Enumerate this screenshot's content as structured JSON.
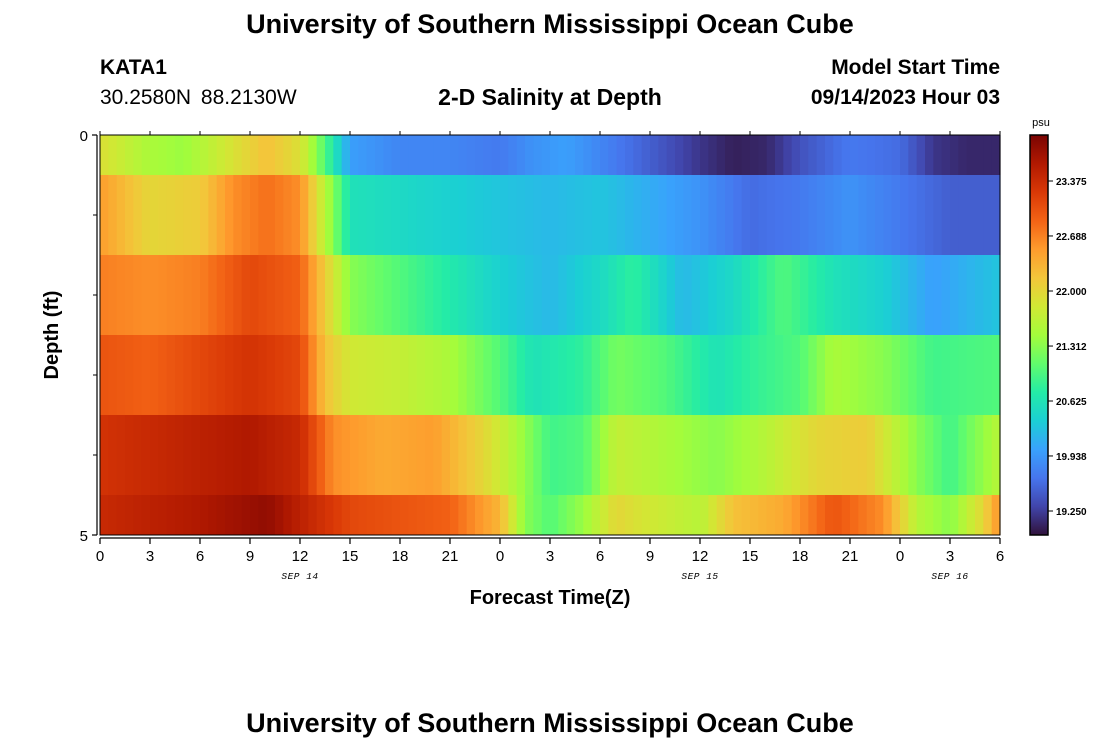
{
  "page": {
    "title": "University of Southern Mississippi Ocean Cube",
    "title_repeat": "University of Southern Mississippi Ocean Cube"
  },
  "header": {
    "station_id": "KATA1",
    "coordinates": "30.2580N  88.2130W",
    "plot_title": "2-D Salinity at Depth",
    "model_start_label": "Model Start Time",
    "model_start_value": "09/14/2023 Hour 03"
  },
  "colors": {
    "colormap": [
      "#30123b",
      "#4145ab",
      "#4675ed",
      "#39a2fc",
      "#1bcfd4",
      "#24eca6",
      "#61fc6c",
      "#a4fc3b",
      "#d1e834",
      "#f3c63a",
      "#fe9b2d",
      "#f36315",
      "#d93806",
      "#b11901",
      "#7a0403"
    ]
  },
  "chart_data": {
    "type": "heatmap",
    "title": "2-D Salinity at Depth",
    "xlabel": "Forecast Time(Z)",
    "ylabel": "Depth (ft)",
    "colorbar_unit": "psu",
    "colorbar_ticks": [
      23.375,
      22.688,
      22.0,
      21.312,
      20.625,
      19.938,
      19.25
    ],
    "colorbar_tick_labels": [
      "23.375",
      "22.688",
      "22.000",
      "21.312",
      "20.625",
      "19.938",
      "19.250"
    ],
    "colorbar_range": [
      18.95,
      23.95
    ],
    "x_range_hours": [
      0,
      54
    ],
    "x_ticks_hours": [
      0,
      3,
      6,
      9,
      12,
      15,
      18,
      21,
      24,
      27,
      30,
      33,
      36,
      39,
      42,
      45,
      48,
      51,
      54
    ],
    "x_tick_labels": [
      "0",
      "3",
      "6",
      "9",
      "12",
      "15",
      "18",
      "21",
      "0",
      "3",
      "6",
      "9",
      "12",
      "15",
      "18",
      "21",
      "0",
      "3",
      "6"
    ],
    "date_labels": [
      {
        "hour": 12,
        "label": "SEP 14"
      },
      {
        "hour": 36,
        "label": "SEP 15"
      },
      {
        "hour": 51,
        "label": "SEP 16"
      }
    ],
    "y_range": [
      0,
      5
    ],
    "y_tick_labels": [
      "0",
      "5"
    ],
    "y_minor_ticks": [
      1,
      2,
      3,
      4
    ],
    "depth_bands": [
      {
        "depth": "0-0.5",
        "y0": 0.0,
        "y1": 0.5
      },
      {
        "depth": "0.5-1.5",
        "y0": 0.5,
        "y1": 1.5
      },
      {
        "depth": "1.5-2.5",
        "y0": 1.5,
        "y1": 2.5
      },
      {
        "depth": "2.5-3.5",
        "y0": 2.5,
        "y1": 3.5
      },
      {
        "depth": "3.5-4.5",
        "y0": 3.5,
        "y1": 4.5
      },
      {
        "depth": "4.5-5",
        "y0": 4.5,
        "y1": 5.0
      }
    ],
    "salinity_keyframes": [
      {
        "depth": "0-0.5",
        "points": [
          [
            0,
            21.9
          ],
          [
            3,
            21.5
          ],
          [
            5,
            21.4
          ],
          [
            7.5,
            21.8
          ],
          [
            10,
            22.2
          ],
          [
            12,
            21.9
          ],
          [
            13.5,
            21.0
          ],
          [
            15,
            20.0
          ],
          [
            18,
            19.8
          ],
          [
            21,
            19.8
          ],
          [
            24,
            19.7
          ],
          [
            26,
            19.9
          ],
          [
            28,
            20.0
          ],
          [
            31,
            19.7
          ],
          [
            33,
            19.5
          ],
          [
            36,
            19.2
          ],
          [
            38,
            19.05
          ],
          [
            40,
            19.1
          ],
          [
            42,
            19.4
          ],
          [
            45,
            19.7
          ],
          [
            48,
            19.6
          ],
          [
            50,
            19.2
          ],
          [
            52,
            19.1
          ],
          [
            54,
            19.1
          ]
        ]
      },
      {
        "depth": "0.5-1.5",
        "points": [
          [
            0,
            22.5
          ],
          [
            3,
            22.0
          ],
          [
            6,
            22.1
          ],
          [
            8,
            22.6
          ],
          [
            10,
            22.8
          ],
          [
            12,
            22.6
          ],
          [
            13.5,
            21.6
          ],
          [
            15,
            20.6
          ],
          [
            18,
            20.5
          ],
          [
            21,
            20.4
          ],
          [
            24,
            20.3
          ],
          [
            27,
            20.2
          ],
          [
            30,
            20.3
          ],
          [
            33,
            20.1
          ],
          [
            36,
            19.9
          ],
          [
            39,
            19.6
          ],
          [
            42,
            19.7
          ],
          [
            45,
            19.9
          ],
          [
            48,
            19.7
          ],
          [
            51,
            19.5
          ],
          [
            54,
            19.5
          ]
        ]
      },
      {
        "depth": "1.5-2.5",
        "points": [
          [
            0,
            22.7
          ],
          [
            3,
            22.6
          ],
          [
            6,
            22.7
          ],
          [
            9,
            23.1
          ],
          [
            12,
            22.9
          ],
          [
            13.5,
            22.1
          ],
          [
            15,
            21.3
          ],
          [
            18,
            21.0
          ],
          [
            21,
            20.7
          ],
          [
            24,
            20.4
          ],
          [
            27,
            20.2
          ],
          [
            30,
            20.5
          ],
          [
            32,
            20.8
          ],
          [
            35,
            20.2
          ],
          [
            38,
            20.5
          ],
          [
            41,
            21.0
          ],
          [
            44,
            20.6
          ],
          [
            47,
            20.4
          ],
          [
            50,
            20.0
          ],
          [
            54,
            20.3
          ]
        ]
      },
      {
        "depth": "2.5-3.5",
        "points": [
          [
            0,
            23.0
          ],
          [
            3,
            22.9
          ],
          [
            6,
            23.1
          ],
          [
            9,
            23.3
          ],
          [
            12,
            23.1
          ],
          [
            13.5,
            22.2
          ],
          [
            15,
            21.8
          ],
          [
            18,
            21.7
          ],
          [
            21,
            21.5
          ],
          [
            24,
            21.0
          ],
          [
            26,
            20.6
          ],
          [
            29,
            20.8
          ],
          [
            31,
            21.2
          ],
          [
            34,
            21.0
          ],
          [
            37,
            20.6
          ],
          [
            39,
            20.8
          ],
          [
            42,
            21.0
          ],
          [
            44,
            21.5
          ],
          [
            47,
            21.3
          ],
          [
            50,
            20.9
          ],
          [
            54,
            21.0
          ]
        ]
      },
      {
        "depth": "3.5-4.5",
        "points": [
          [
            0,
            23.3
          ],
          [
            3,
            23.4
          ],
          [
            6,
            23.5
          ],
          [
            9,
            23.6
          ],
          [
            12,
            23.4
          ],
          [
            14,
            22.6
          ],
          [
            17,
            22.4
          ],
          [
            20,
            22.5
          ],
          [
            23,
            22.0
          ],
          [
            25,
            21.5
          ],
          [
            27,
            20.9
          ],
          [
            29,
            21.0
          ],
          [
            31,
            21.7
          ],
          [
            34,
            21.5
          ],
          [
            37,
            21.3
          ],
          [
            40,
            21.6
          ],
          [
            43,
            22.0
          ],
          [
            46,
            22.1
          ],
          [
            49,
            21.3
          ],
          [
            51,
            20.9
          ],
          [
            54,
            21.6
          ]
        ]
      },
      {
        "depth": "4.5-5",
        "points": [
          [
            0,
            23.4
          ],
          [
            3,
            23.5
          ],
          [
            6,
            23.6
          ],
          [
            8,
            23.7
          ],
          [
            10,
            23.8
          ],
          [
            12,
            23.5
          ],
          [
            15,
            23.1
          ],
          [
            18,
            23.0
          ],
          [
            21,
            22.9
          ],
          [
            24,
            22.3
          ],
          [
            25.5,
            21.3
          ],
          [
            27,
            21.0
          ],
          [
            29,
            21.4
          ],
          [
            31,
            22.0
          ],
          [
            33,
            21.8
          ],
          [
            36,
            21.6
          ],
          [
            38,
            22.2
          ],
          [
            41,
            22.4
          ],
          [
            44,
            23.0
          ],
          [
            47,
            22.6
          ],
          [
            49,
            21.6
          ],
          [
            51,
            21.3
          ],
          [
            53,
            22.0
          ],
          [
            54,
            22.6
          ]
        ]
      }
    ]
  }
}
